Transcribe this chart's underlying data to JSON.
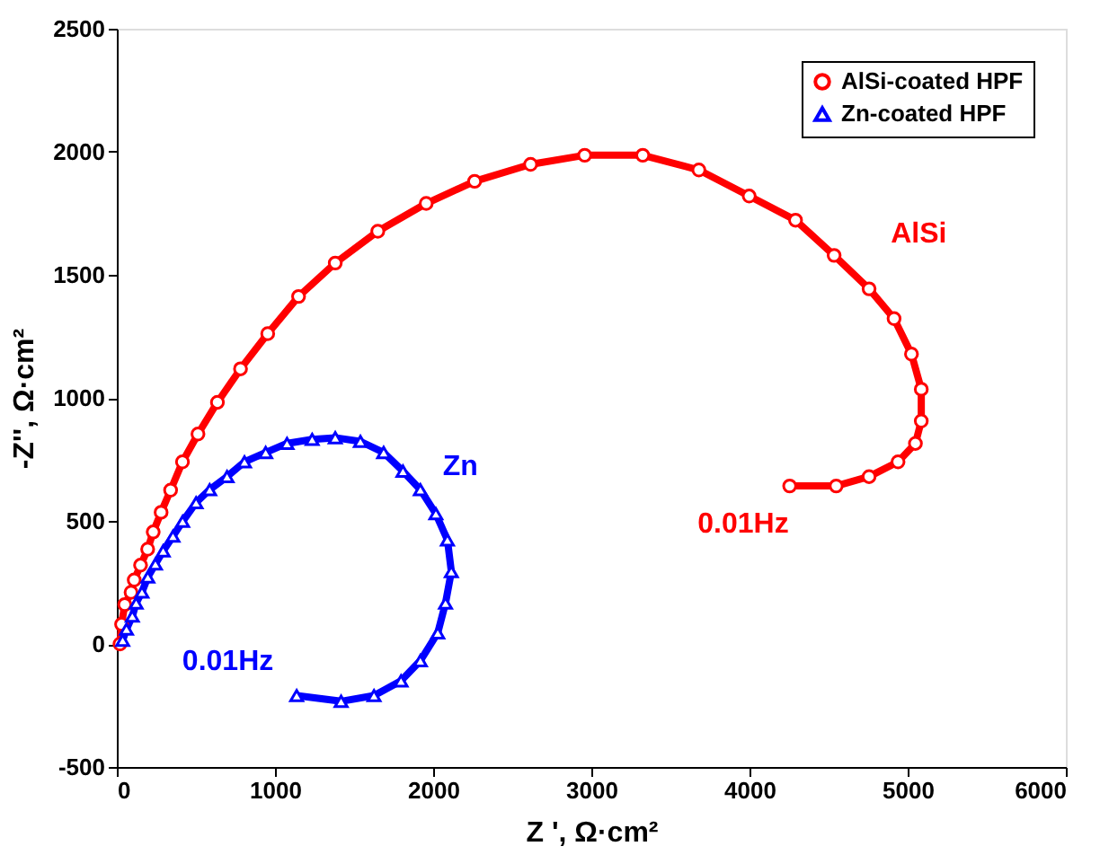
{
  "chart_data": {
    "type": "line",
    "xlabel": "Z ', Ω·cm²",
    "ylabel": "-Z'', Ω·cm²",
    "xlim": [
      0,
      6000
    ],
    "ylim": [
      -500,
      2500
    ],
    "xticks": [
      0,
      1000,
      2000,
      3000,
      4000,
      5000,
      6000
    ],
    "yticks": [
      -500,
      0,
      500,
      1000,
      1500,
      2000,
      2500
    ],
    "legend": "top right",
    "grid": false,
    "line_style": "solid",
    "series": [
      {
        "name": "AlSi-coated HPF",
        "color": "#ff0000",
        "marker": "circle",
        "x": [
          20,
          30,
          50,
          90,
          110,
          150,
          195,
          230,
          280,
          340,
          415,
          513,
          636,
          782,
          954,
          1149,
          1381,
          1650,
          1956,
          2262,
          2616,
          2958,
          3325,
          3680,
          3998,
          4291,
          4535,
          4756,
          4914,
          5024,
          5086,
          5086,
          5049,
          4939,
          4756,
          4548,
          4254
        ],
        "values": [
          0,
          80,
          160,
          210,
          260,
          320,
          385,
          455,
          535,
          625,
          740,
          853,
          982,
          1118,
          1261,
          1412,
          1548,
          1677,
          1790,
          1880,
          1949,
          1986,
          1986,
          1926,
          1820,
          1722,
          1579,
          1443,
          1322,
          1178,
          1035,
          906,
          815,
          740,
          680,
          642,
          642
        ]
      },
      {
        "name": "Zn-coated HPF",
        "color": "#0000ff",
        "marker": "triangle",
        "x": [
          37,
          61,
          98,
          122,
          159,
          196,
          244,
          293,
          355,
          416,
          501,
          587,
          697,
          807,
          941,
          1076,
          1235,
          1381,
          1540,
          1687,
          1809,
          1919,
          2017,
          2090,
          2115,
          2078,
          2029,
          1919,
          1797,
          1626,
          1418,
          1137
        ],
        "values": [
          15,
          60,
          113,
          166,
          211,
          272,
          325,
          378,
          438,
          498,
          574,
          627,
          680,
          740,
          778,
          815,
          831,
          838,
          823,
          778,
          702,
          627,
          529,
          423,
          294,
          166,
          45,
          -68,
          -150,
          -210,
          -233,
          -210
        ]
      }
    ],
    "annotations": [
      "AlSi",
      "0.01Hz",
      "Zn",
      "0.01Hz"
    ]
  }
}
